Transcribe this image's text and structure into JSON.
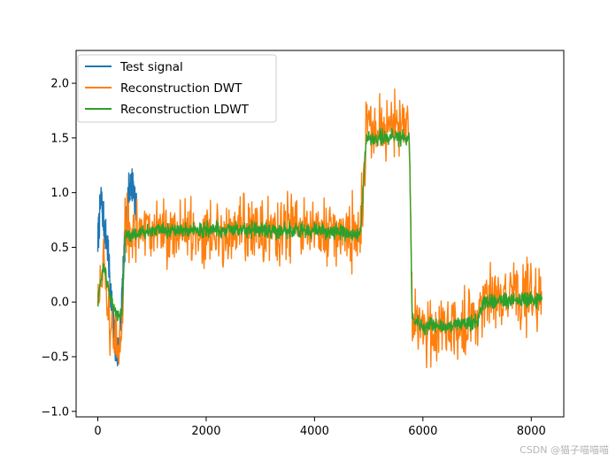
{
  "chart_data": {
    "type": "line",
    "title": "",
    "xlabel": "",
    "ylabel": "",
    "xlim": [
      -400,
      8600
    ],
    "ylim": [
      -1.05,
      2.3
    ],
    "xticks": [
      0,
      2000,
      4000,
      6000,
      8000
    ],
    "yticks": [
      -1.0,
      -0.5,
      0.0,
      0.5,
      1.0,
      1.5,
      2.0
    ],
    "xtick_labels": [
      "0",
      "2000",
      "4000",
      "6000",
      "8000"
    ],
    "ytick_labels": [
      "−1.0",
      "−0.5",
      "0.0",
      "0.5",
      "1.0",
      "1.5",
      "2.0"
    ],
    "legend_position": "top-left",
    "series": [
      {
        "name": "Test signal",
        "color": "#1f77b4",
        "x": [
          0,
          60,
          120,
          180,
          240,
          300,
          360,
          420,
          480,
          540,
          600,
          660,
          720
        ],
        "values": [
          0.55,
          0.95,
          0.7,
          0.5,
          0.1,
          -0.3,
          -0.5,
          -0.2,
          0.35,
          0.9,
          1.1,
          1.05,
          0.8
        ]
      },
      {
        "name": "Reconstruction DWT",
        "color": "#ff7f0e",
        "x": [
          0,
          100,
          200,
          300,
          400,
          450,
          500,
          1000,
          2000,
          3000,
          4000,
          4850,
          4950,
          5500,
          5750,
          5800,
          6000,
          6500,
          7000,
          7100,
          7600,
          8200
        ],
        "values": [
          0.0,
          0.35,
          -0.15,
          -0.3,
          -0.45,
          -0.35,
          0.6,
          0.65,
          0.65,
          0.65,
          0.65,
          0.6,
          1.6,
          1.6,
          1.55,
          -0.2,
          -0.25,
          -0.2,
          -0.15,
          0.05,
          0.05,
          0.05
        ],
        "noise_amplitude": 0.45
      },
      {
        "name": "Reconstruction LDWT",
        "color": "#2ca02c",
        "x": [
          0,
          100,
          200,
          300,
          400,
          450,
          500,
          1000,
          2000,
          3000,
          4000,
          4850,
          4950,
          5500,
          5750,
          5800,
          6000,
          6500,
          7000,
          7100,
          7600,
          8200
        ],
        "values": [
          0.0,
          0.35,
          0.1,
          -0.05,
          -0.15,
          -0.1,
          0.6,
          0.65,
          0.66,
          0.66,
          0.65,
          0.62,
          1.5,
          1.5,
          1.5,
          -0.15,
          -0.22,
          -0.22,
          -0.18,
          0.0,
          0.02,
          0.02
        ],
        "noise_amplitude": 0.1
      }
    ]
  },
  "watermark": "CSDN @猫子喵喵喵"
}
